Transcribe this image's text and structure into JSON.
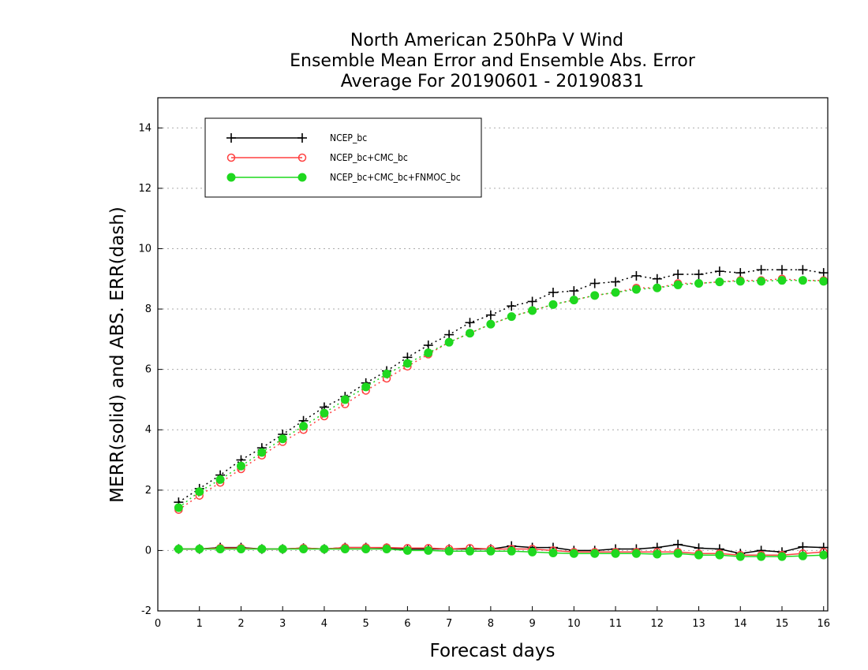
{
  "chart_data": {
    "type": "line",
    "title_lines": [
      "North American 250hPa V Wind",
      "Ensemble Mean Error and Ensemble Abs. Error",
      "Average For 20190601 - 20190831"
    ],
    "xlabel": "Forecast days",
    "ylabel": "MERR(solid) and ABS. ERR(dash)",
    "xlim": [
      0,
      16.1
    ],
    "ylim": [
      -2,
      15
    ],
    "xticks": [
      0,
      1,
      2,
      3,
      4,
      5,
      6,
      7,
      8,
      9,
      10,
      11,
      12,
      13,
      14,
      15,
      16
    ],
    "yticks": [
      -2,
      0,
      2,
      4,
      6,
      8,
      10,
      12,
      14
    ],
    "grid": "horizontal dotted",
    "legend_position": "top-left",
    "x": [
      0.5,
      1,
      1.5,
      2,
      2.5,
      3,
      3.5,
      4,
      4.5,
      5,
      5.5,
      6,
      6.5,
      7,
      7.5,
      8,
      8.5,
      9,
      9.5,
      10,
      10.5,
      11,
      11.5,
      12,
      12.5,
      13,
      13.5,
      14,
      14.5,
      15,
      15.5,
      16
    ],
    "series": [
      {
        "name": "NCEP_bc",
        "color": "#000000",
        "marker": "plus",
        "merr": [
          0.05,
          0.05,
          0.1,
          0.1,
          0.05,
          0.05,
          0.08,
          0.05,
          0.1,
          0.1,
          0.08,
          0.05,
          0.05,
          0.05,
          0.05,
          0.05,
          0.15,
          0.1,
          0.1,
          0.0,
          0.0,
          0.05,
          0.05,
          0.1,
          0.2,
          0.08,
          0.05,
          -0.1,
          0.0,
          -0.05,
          0.12,
          0.1
        ],
        "abs_err": [
          1.6,
          2.05,
          2.5,
          3.0,
          3.4,
          3.85,
          4.3,
          4.75,
          5.1,
          5.55,
          5.95,
          6.4,
          6.8,
          7.15,
          7.55,
          7.8,
          8.1,
          8.25,
          8.55,
          8.6,
          8.85,
          8.9,
          9.1,
          9.0,
          9.15,
          9.15,
          9.25,
          9.2,
          9.3,
          9.3,
          9.3,
          9.2
        ]
      },
      {
        "name": "NCEP_bc+CMC_bc",
        "color": "#ff4040",
        "marker": "open-circle",
        "merr": [
          0.05,
          0.05,
          0.08,
          0.08,
          0.05,
          0.05,
          0.08,
          0.05,
          0.1,
          0.1,
          0.1,
          0.08,
          0.08,
          0.05,
          0.08,
          0.05,
          0.05,
          0.05,
          0.0,
          -0.05,
          -0.05,
          -0.05,
          -0.05,
          -0.05,
          -0.05,
          -0.1,
          -0.1,
          -0.15,
          -0.15,
          -0.15,
          -0.1,
          -0.05
        ],
        "abs_err": [
          1.35,
          1.82,
          2.25,
          2.7,
          3.15,
          3.6,
          4.0,
          4.45,
          4.85,
          5.3,
          5.7,
          6.1,
          6.5,
          6.9,
          7.2,
          7.5,
          7.75,
          7.95,
          8.15,
          8.3,
          8.45,
          8.55,
          8.7,
          8.7,
          8.85,
          8.85,
          8.9,
          8.95,
          8.95,
          9.0,
          8.95,
          8.95
        ]
      },
      {
        "name": "NCEP_bc+CMC_bc+FNMOC_bc",
        "color": "#1fd81f",
        "marker": "filled-circle",
        "merr": [
          0.05,
          0.05,
          0.05,
          0.05,
          0.05,
          0.05,
          0.05,
          0.05,
          0.05,
          0.05,
          0.05,
          0.0,
          0.0,
          -0.02,
          -0.02,
          -0.02,
          -0.02,
          -0.05,
          -0.08,
          -0.1,
          -0.1,
          -0.1,
          -0.1,
          -0.12,
          -0.1,
          -0.15,
          -0.15,
          -0.2,
          -0.2,
          -0.2,
          -0.18,
          -0.15
        ],
        "abs_err": [
          1.42,
          1.95,
          2.35,
          2.8,
          3.25,
          3.7,
          4.12,
          4.55,
          5.0,
          5.42,
          5.85,
          6.2,
          6.55,
          6.9,
          7.2,
          7.5,
          7.75,
          7.95,
          8.15,
          8.3,
          8.45,
          8.55,
          8.65,
          8.7,
          8.8,
          8.85,
          8.9,
          8.92,
          8.92,
          8.95,
          8.95,
          8.92
        ]
      }
    ]
  }
}
